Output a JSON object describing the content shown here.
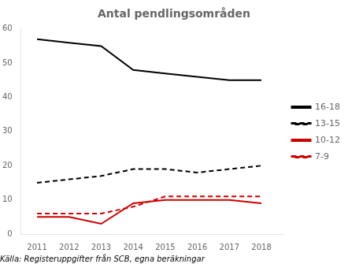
{
  "chart_data": {
    "type": "line",
    "title": "Antal pendlingsområden",
    "annotations": [
      "Källa: Registeruppgifter från SCB, egna beräkningar"
    ],
    "x": [
      2011,
      2012,
      2013,
      2014,
      2015,
      2016,
      2017,
      2018
    ],
    "xlim": [
      2010.5,
      2018.7
    ],
    "xticks": [
      2011,
      2012,
      2013,
      2014,
      2015,
      2016,
      2017,
      2018
    ],
    "ylim": [
      0,
      60
    ],
    "yticks": [
      0,
      10,
      20,
      30,
      40,
      50,
      60
    ],
    "grid": false,
    "legend": "right",
    "series": [
      {
        "name": "16-18",
        "color": "#000000",
        "line_style": "solid",
        "values": [
          57,
          56,
          55,
          48,
          47,
          46,
          45,
          45
        ]
      },
      {
        "name": "13-15",
        "color": "#000000",
        "line_style": "dashed",
        "values": [
          15,
          16,
          17,
          19,
          19,
          18,
          19,
          20
        ]
      },
      {
        "name": "10-12",
        "color": "#cc0000",
        "line_style": "solid",
        "values": [
          5,
          5,
          3,
          9,
          10,
          10,
          10,
          9
        ]
      },
      {
        "name": "7-9",
        "color": "#cc0000",
        "line_style": "dashed",
        "values": [
          6,
          6,
          6,
          8,
          11,
          11,
          11,
          11
        ]
      }
    ]
  }
}
